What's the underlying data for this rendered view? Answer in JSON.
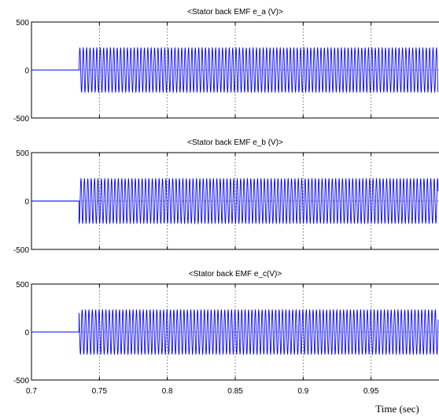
{
  "chart_data": [
    {
      "type": "line",
      "title": "<Stator back EMF e_a (V)>",
      "xlabel": "",
      "ylabel": "",
      "xlim": [
        0.7,
        1.0
      ],
      "ylim": [
        -500,
        500
      ],
      "y_ticks": [
        "500",
        "0",
        "-500"
      ],
      "x_ticks": [],
      "grid": true,
      "signal_color": "#0000ff",
      "series": [
        {
          "start": 0.735,
          "end": 1.0,
          "amplitude": 230,
          "frequency_hz": 400,
          "phase_deg": 0,
          "baseline_before_start": 0
        }
      ]
    },
    {
      "type": "line",
      "title": "<Stator back EMF e_b (V)>",
      "xlabel": "",
      "ylabel": "",
      "xlim": [
        0.7,
        1.0
      ],
      "ylim": [
        -500,
        500
      ],
      "y_ticks": [
        "500",
        "0",
        "-500"
      ],
      "x_ticks": [],
      "grid": true,
      "signal_color": "#0000ff",
      "series": [
        {
          "start": 0.735,
          "end": 1.0,
          "amplitude": 230,
          "frequency_hz": 400,
          "phase_deg": -120,
          "baseline_before_start": 0
        }
      ]
    },
    {
      "type": "line",
      "title": "<Stator back EMF e_c(V)>",
      "xlabel": "Time (sec)",
      "ylabel": "",
      "xlim": [
        0.7,
        1.0
      ],
      "ylim": [
        -500,
        500
      ],
      "y_ticks": [
        "500",
        "0",
        "-500"
      ],
      "x_ticks": [
        "0.7",
        "0.75",
        "0.8",
        "0.85",
        "0.9",
        "0.95"
      ],
      "grid": true,
      "signal_color": "#0000ff",
      "series": [
        {
          "start": 0.735,
          "end": 1.0,
          "amplitude": 230,
          "frequency_hz": 400,
          "phase_deg": 120,
          "baseline_before_start": 0
        }
      ]
    }
  ]
}
